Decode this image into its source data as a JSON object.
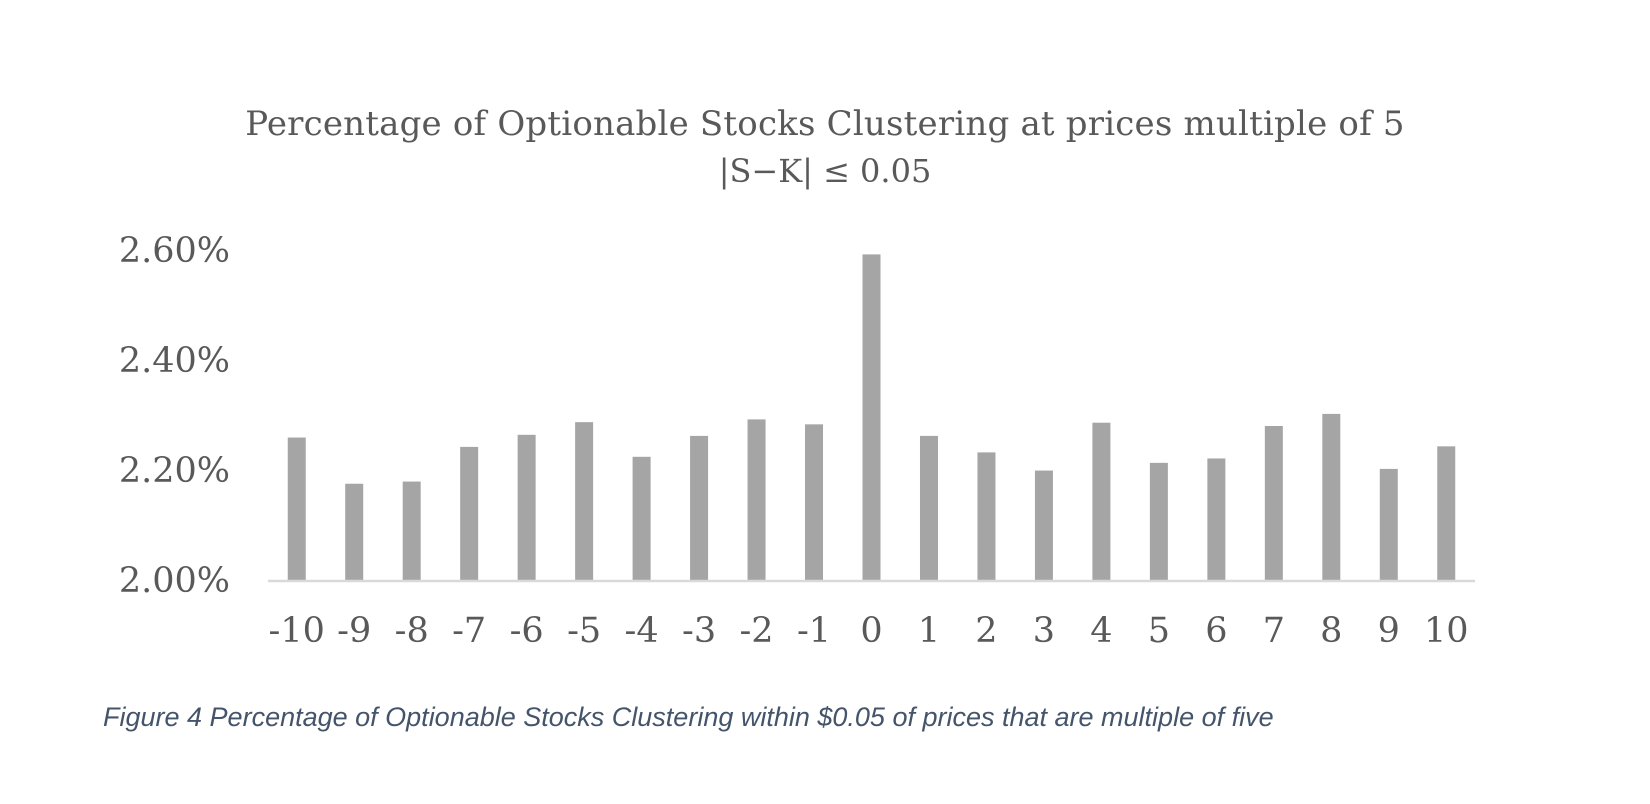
{
  "chart_data": {
    "type": "bar",
    "title": "Percentage of Optionable Stocks Clustering at prices multiple of 5",
    "subtitle": "|S−K| ≤ 0.05",
    "xlabel": "",
    "ylabel": "",
    "categories": [
      "-10",
      "-9",
      "-8",
      "-7",
      "-6",
      "-5",
      "-4",
      "-3",
      "-2",
      "-1",
      "0",
      "1",
      "2",
      "3",
      "4",
      "5",
      "6",
      "7",
      "8",
      "9",
      "10"
    ],
    "values": [
      2.259,
      2.175,
      2.179,
      2.242,
      2.264,
      2.287,
      2.224,
      2.262,
      2.292,
      2.283,
      2.592,
      2.262,
      2.232,
      2.199,
      2.286,
      2.213,
      2.221,
      2.28,
      2.302,
      2.202,
      2.243
    ],
    "ylim": [
      2.0,
      2.6
    ],
    "yticks": [
      "2.00%",
      "2.20%",
      "2.40%",
      "2.60%"
    ],
    "ytick_values": [
      2.0,
      2.2,
      2.4,
      2.6
    ],
    "grid": false,
    "legend": "none",
    "bar_color": "#A5A5A5",
    "axis_color": "#D9D9D9"
  },
  "caption": "Figure 4 Percentage of Optionable Stocks Clustering within $0.05 of prices that are multiple of five"
}
